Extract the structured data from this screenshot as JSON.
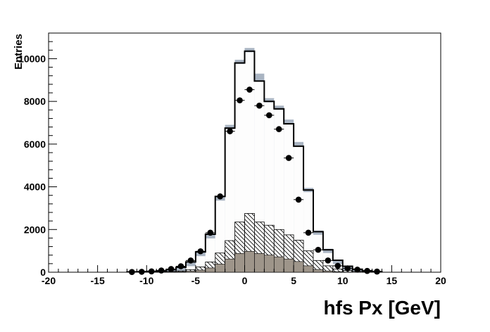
{
  "chart_data": {
    "type": "histogram",
    "xlabel": "hfs Px [GeV]",
    "ylabel": "Entries",
    "xlim": [
      -20,
      20
    ],
    "ylim": [
      0,
      11200
    ],
    "bin_width": 1,
    "x_ticks": [
      -20,
      -15,
      -10,
      -5,
      0,
      5,
      10,
      15,
      20
    ],
    "y_ticks": [
      0,
      2000,
      4000,
      6000,
      8000,
      10000
    ],
    "colors": {
      "mc_total_line": "#000000",
      "mc_total_fill": "#fdfdfd",
      "uncertainty_band": "#a9b4c2",
      "hatched_component": "#000000",
      "solid_component": "#9e958a",
      "data_marker": "#000000"
    },
    "bin_edges": [
      -12,
      -11,
      -10,
      -9,
      -8,
      -7,
      -6,
      -5,
      -4,
      -3,
      -2,
      -1,
      0,
      1,
      2,
      3,
      4,
      5,
      6,
      7,
      8,
      9,
      10,
      11,
      12,
      13,
      14
    ],
    "series": [
      {
        "kind": "mc_total",
        "values": [
          15,
          25,
          40,
          70,
          120,
          230,
          480,
          950,
          1780,
          3550,
          6750,
          9800,
          10350,
          8950,
          8000,
          7650,
          6950,
          5900,
          3850,
          1900,
          1050,
          560,
          280,
          140,
          70,
          30
        ]
      },
      {
        "kind": "uncertainty_band",
        "values": [
          15,
          25,
          40,
          70,
          120,
          230,
          480,
          950,
          1780,
          3550,
          6900,
          9950,
          10500,
          9300,
          8150,
          7800,
          7150,
          6100,
          3950,
          1950,
          1100,
          580,
          290,
          150,
          70,
          30
        ]
      },
      {
        "kind": "hatched_component",
        "values": [
          5,
          8,
          12,
          20,
          35,
          60,
          120,
          250,
          480,
          900,
          1480,
          2350,
          2750,
          2350,
          2200,
          2000,
          1750,
          1500,
          1000,
          550,
          300,
          150,
          80,
          40,
          20,
          8
        ]
      },
      {
        "kind": "solid_component",
        "values": [
          2,
          3,
          5,
          8,
          15,
          25,
          50,
          100,
          200,
          380,
          620,
          880,
          980,
          880,
          800,
          720,
          620,
          500,
          300,
          130,
          60,
          25,
          10,
          5,
          2,
          1
        ]
      },
      {
        "kind": "data_points",
        "x": [
          -11.5,
          -10.5,
          -9.5,
          -8.5,
          -7.5,
          -6.5,
          -5.5,
          -4.5,
          -3.5,
          -2.5,
          -1.5,
          -0.5,
          0.5,
          1.5,
          2.5,
          3.5,
          4.5,
          5.5,
          6.5,
          7.5,
          8.5,
          9.5,
          10.5,
          11.5,
          12.5,
          13.5
        ],
        "y": [
          10,
          20,
          40,
          80,
          150,
          280,
          550,
          980,
          1850,
          3550,
          6600,
          8050,
          8550,
          7800,
          7350,
          6700,
          5350,
          3400,
          1850,
          1050,
          550,
          300,
          180,
          120,
          60,
          30
        ]
      }
    ]
  }
}
